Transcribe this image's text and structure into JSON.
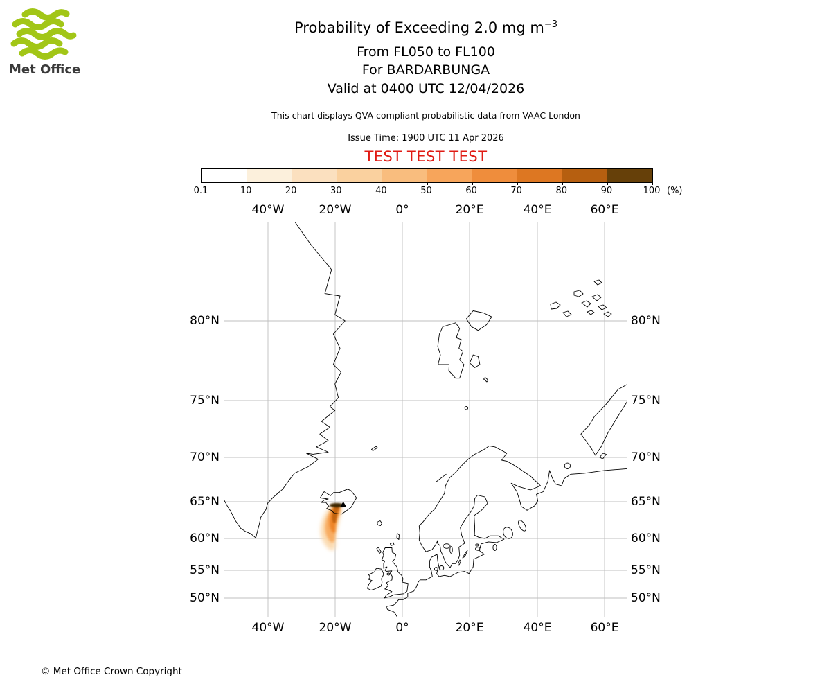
{
  "page": {
    "background": "#ffffff"
  },
  "logo": {
    "text": "Met Office",
    "wave_color": "#a2c617",
    "text_color": "#3a3a3a"
  },
  "header": {
    "title_main": "Probability of Exceeding 2.0 mg m",
    "title_sup": "−3",
    "line_fl": "From FL050 to FL100",
    "line_volcano": "For BARDARBUNGA",
    "line_valid": "Valid at 0400 UTC 12/04/2026",
    "description": "This chart displays QVA compliant probabilistic data from VAAC London",
    "issue_time": "Issue Time: 1900 UTC 11 Apr 2026",
    "test_banner": "TEST TEST TEST",
    "test_banner_color": "#e01b14"
  },
  "colorbar": {
    "tick_labels": [
      "0.1",
      "10",
      "20",
      "30",
      "40",
      "50",
      "60",
      "70",
      "80",
      "90",
      "100"
    ],
    "unit_label": "(%)",
    "segment_colors": [
      "#ffffff",
      "#fcf0dc",
      "#fbe0bf",
      "#fad19f",
      "#f9bd7e",
      "#f7a55b",
      "#ef8d3c",
      "#dd7722",
      "#b65f10",
      "#664009"
    ]
  },
  "map": {
    "longitude_labels": [
      "40°W",
      "20°W",
      "0°",
      "20°E",
      "40°E",
      "60°E"
    ],
    "latitude_labels": [
      "80°N",
      "75°N",
      "70°N",
      "65°N",
      "60°N",
      "55°N",
      "50°N"
    ],
    "grid_color": "#bfbfbf",
    "coast_color": "#000000",
    "volcano_marker": "black triangle at Bardarbunga, Iceland",
    "plume": {
      "location": "south of Iceland, approx 24W-16W, 58.5N-64.5N",
      "levels": [
        {
          "band": "90-100%",
          "color": "#3d2605"
        },
        {
          "band": "70-90%",
          "color": "#c26411"
        },
        {
          "band": "50-70%",
          "color": "#ee8426"
        },
        {
          "band": "30-50%",
          "color": "#f8ab5e"
        },
        {
          "band": "0.1-30%",
          "color": "#fbd9ad"
        }
      ]
    }
  },
  "footer": {
    "copyright": "© Met Office Crown Copyright"
  }
}
